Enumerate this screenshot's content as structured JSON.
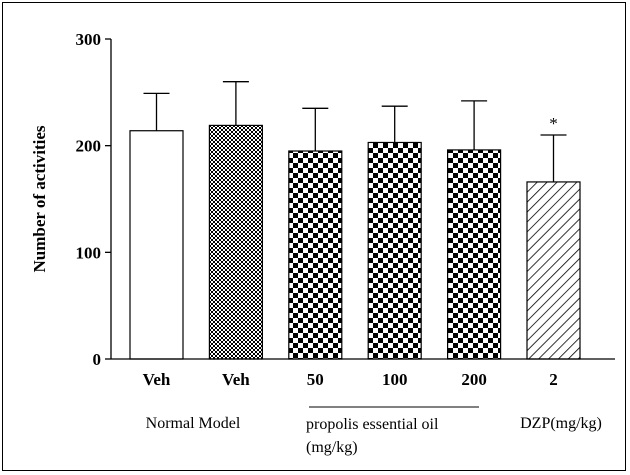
{
  "chart_data": {
    "type": "bar",
    "title": "",
    "ylabel": "Number of activities",
    "xlabel": "",
    "ylim": [
      0,
      300
    ],
    "yticks": [
      0,
      100,
      200,
      300
    ],
    "grid": false,
    "categories": [
      "Veh",
      "Veh",
      "50",
      "100",
      "200",
      "2"
    ],
    "values": [
      214,
      219,
      195,
      203,
      196,
      166
    ],
    "error": [
      35,
      41,
      40,
      34,
      46,
      44
    ],
    "patterns": [
      "white",
      "fine-check",
      "checker",
      "checker",
      "checker",
      "diagonal"
    ],
    "annotations": [
      {
        "category_index": 5,
        "text": "*"
      }
    ],
    "group_labels": {
      "normal_model": "Normal Model",
      "propolis": "propolis essential oil",
      "propolis_unit": "(mg/kg)",
      "dzp": "DZP(mg/kg)"
    }
  }
}
